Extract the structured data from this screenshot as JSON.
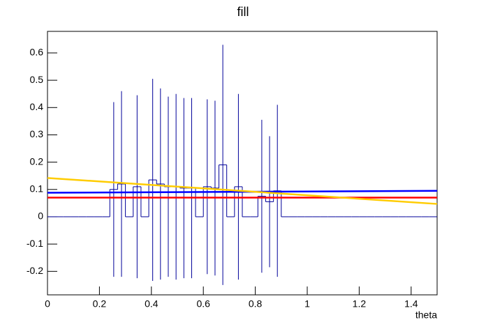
{
  "chart_data": {
    "type": "histogram",
    "title": "fill",
    "x_label": "theta",
    "bins": [
      0,
      0.03,
      0.06,
      0.09,
      0.12,
      0.15,
      0.18,
      0.21,
      0.24,
      0.27,
      0.3,
      0.33,
      0.36,
      0.39,
      0.42,
      0.45,
      0.48,
      0.51,
      0.54,
      0.57,
      0.6,
      0.63,
      0.66,
      0.69,
      0.72,
      0.75,
      0.78,
      0.81,
      0.84,
      0.87,
      0.9,
      0.93,
      0.96,
      0.99,
      1.02,
      1.05,
      1.08,
      1.11,
      1.14,
      1.17,
      1.2,
      1.23,
      1.26,
      1.29,
      1.32,
      1.35,
      1.38,
      1.41,
      1.44,
      1.47,
      1.5
    ],
    "values": [
      0,
      0,
      0,
      0,
      0,
      0,
      0,
      0,
      0.1,
      0.12,
      0,
      0.11,
      0,
      0.135,
      0.12,
      0.11,
      0.11,
      0.105,
      0.105,
      0,
      0.11,
      0.105,
      0.19,
      0,
      0.11,
      0,
      0,
      0.075,
      0.055,
      0.095,
      0,
      0,
      0,
      0,
      0,
      0,
      0,
      0,
      0,
      0,
      0,
      0,
      0,
      0,
      0,
      0,
      0,
      0,
      0,
      0
    ],
    "errors": [
      0,
      0,
      0,
      0,
      0,
      0,
      0,
      0,
      0.32,
      0.34,
      0,
      0.335,
      0,
      0.37,
      0.35,
      0.33,
      0.34,
      0.33,
      0.33,
      0,
      0.32,
      0.32,
      0.44,
      0,
      0.34,
      0,
      0,
      0.28,
      0.24,
      0.315,
      0,
      0,
      0,
      0,
      0,
      0,
      0,
      0,
      0,
      0,
      0,
      0,
      0,
      0,
      0,
      0,
      0,
      0,
      0,
      0
    ],
    "color": "#000099",
    "series": [
      {
        "color": "#ff0000",
        "x": [
          0,
          1.5
        ],
        "values": [
          0.07,
          0.07
        ]
      },
      {
        "color": "#0000ff",
        "x": [
          0,
          1.5
        ],
        "values": [
          0.088,
          0.095
        ]
      },
      {
        "color": "#ffcc00",
        "x": [
          0,
          1.5
        ],
        "values": [
          0.142,
          0.047
        ]
      }
    ],
    "xlim": [
      0,
      1.5
    ],
    "xticks": [
      0,
      0.2,
      0.4,
      0.6,
      0.8,
      1,
      1.2,
      1.4
    ],
    "ylim": [
      -0.286,
      0.679
    ],
    "yticks": [
      -0.2,
      -0.1,
      0,
      0.1,
      0.2,
      0.3,
      0.4,
      0.5,
      0.6
    ]
  }
}
